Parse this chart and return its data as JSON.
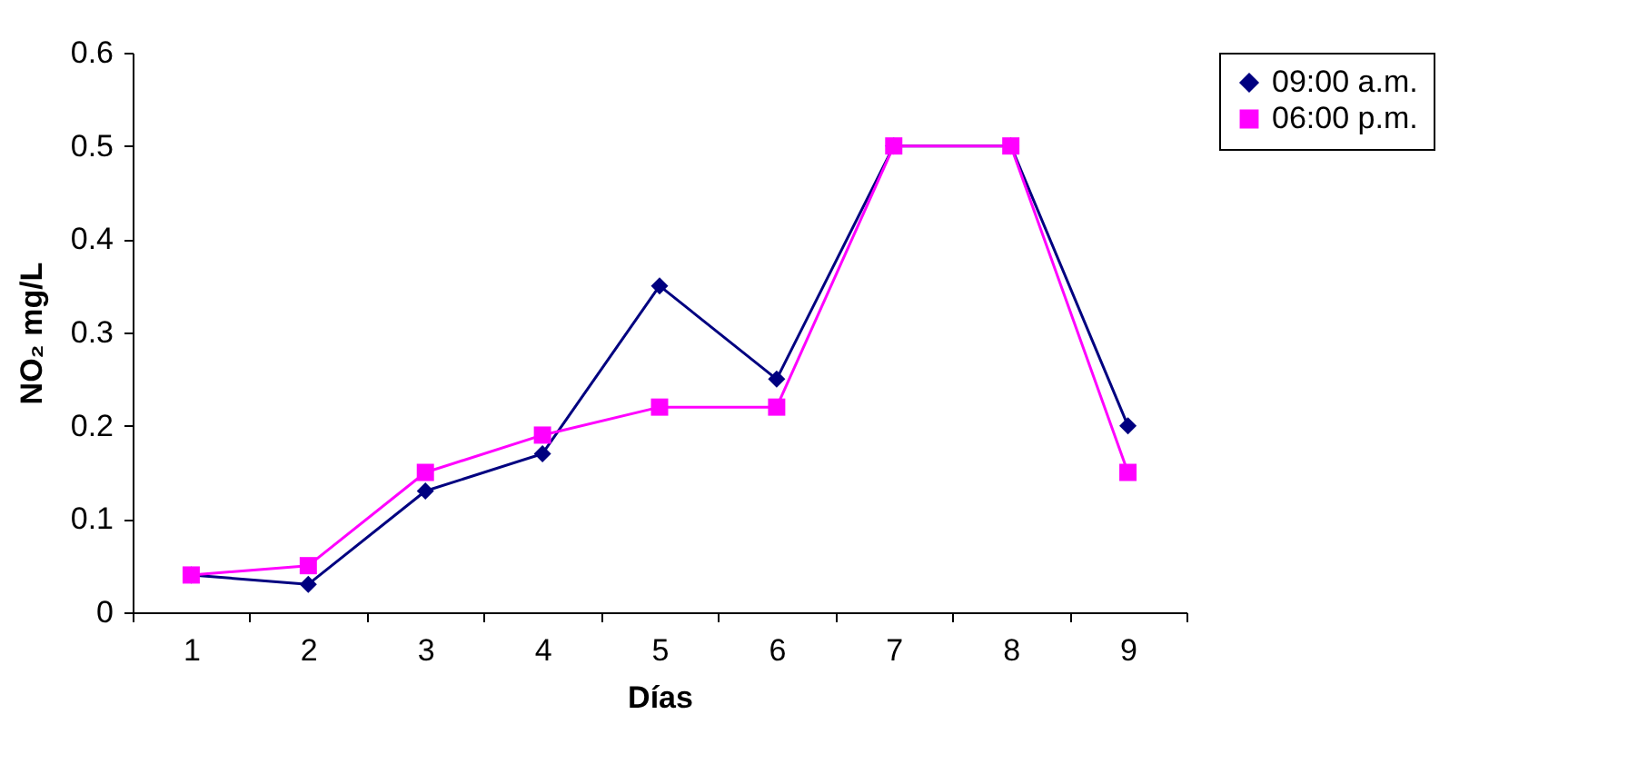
{
  "chart_data": {
    "type": "line",
    "xlabel": "Días",
    "ylabel": "NO₂ mg/L",
    "categories": [
      "1",
      "2",
      "3",
      "4",
      "5",
      "6",
      "7",
      "8",
      "9"
    ],
    "series": [
      {
        "name": "09:00 a.m.",
        "color": "#000080",
        "marker": "diamond",
        "values": [
          0.04,
          0.03,
          0.13,
          0.17,
          0.35,
          0.25,
          0.5,
          0.5,
          0.2
        ]
      },
      {
        "name": "06:00 p.m.",
        "color": "#ff00ff",
        "marker": "square",
        "values": [
          0.04,
          0.05,
          0.15,
          0.19,
          0.22,
          0.22,
          0.5,
          0.5,
          0.15
        ]
      }
    ],
    "ylim": [
      0,
      0.6
    ],
    "yticks": [
      0,
      0.1,
      0.2,
      0.3,
      0.4,
      0.5,
      0.6
    ],
    "grid": false,
    "legend": "right"
  }
}
